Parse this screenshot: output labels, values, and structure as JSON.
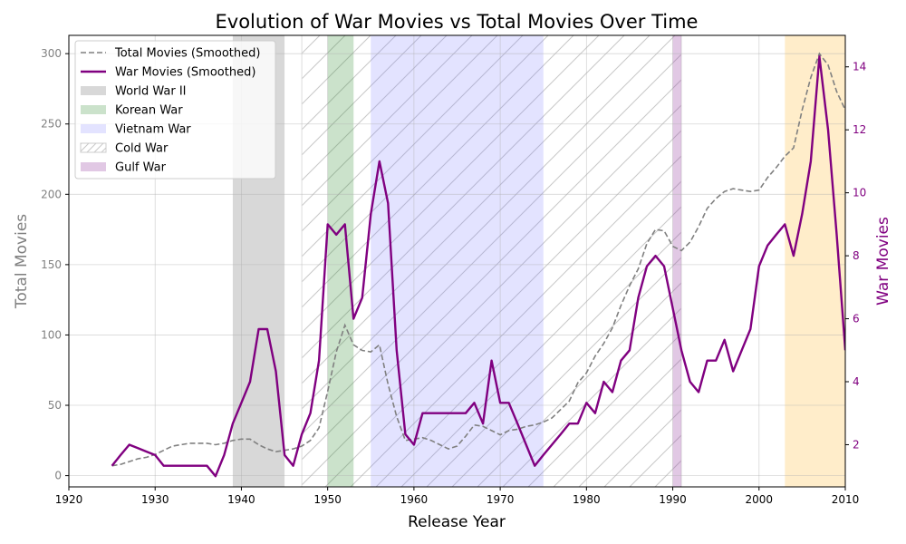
{
  "chart_data": {
    "type": "line",
    "title": "Evolution of War Movies vs Total Movies Over Time",
    "xlabel": "Release Year",
    "ylabel_left": "Total Movies",
    "ylabel_right": "War Movies",
    "xlim": [
      1920,
      2010
    ],
    "ylim_left": [
      -8,
      313
    ],
    "ylim_right": [
      0.66,
      15
    ],
    "xticks": [
      1920,
      1930,
      1940,
      1950,
      1960,
      1970,
      1980,
      1990,
      2000,
      2010
    ],
    "yticks_left": [
      0,
      50,
      100,
      150,
      200,
      250,
      300
    ],
    "yticks_right": [
      2,
      4,
      6,
      8,
      10,
      12,
      14
    ],
    "grid": true,
    "legend_position": "top-left",
    "colors": {
      "total": "#808080",
      "war": "#800080",
      "ww2": "#a9a9a9",
      "korean": "#2e8b2e",
      "vietnam": "#8080ff",
      "cold": "#c8c8c8",
      "gulf": "#9b4aa6",
      "extra": "#ffcc66"
    },
    "periods": [
      {
        "name": "World War II",
        "start": 1939,
        "end": 1945,
        "style": "ww2"
      },
      {
        "name": "Korean War",
        "start": 1950,
        "end": 1953,
        "style": "korean"
      },
      {
        "name": "Vietnam War",
        "start": 1955,
        "end": 1975,
        "style": "vietnam"
      },
      {
        "name": "Cold War",
        "start": 1947,
        "end": 1991,
        "style": "cold"
      },
      {
        "name": "Gulf War",
        "start": 1990,
        "end": 1991,
        "style": "gulf"
      },
      {
        "name": "",
        "start": 2003,
        "end": 2010,
        "style": "extra"
      }
    ],
    "series": [
      {
        "name": "Total Movies (Smoothed)",
        "axis": "left",
        "x": [
          1925,
          1926,
          1927,
          1928,
          1929,
          1930,
          1931,
          1932,
          1933,
          1934,
          1935,
          1936,
          1937,
          1938,
          1939,
          1940,
          1941,
          1942,
          1943,
          1944,
          1945,
          1946,
          1947,
          1948,
          1949,
          1950,
          1951,
          1952,
          1953,
          1954,
          1955,
          1956,
          1957,
          1958,
          1959,
          1960,
          1961,
          1962,
          1963,
          1964,
          1965,
          1966,
          1967,
          1968,
          1969,
          1970,
          1971,
          1972,
          1973,
          1974,
          1975,
          1976,
          1977,
          1978,
          1979,
          1980,
          1981,
          1982,
          1983,
          1984,
          1985,
          1986,
          1987,
          1988,
          1989,
          1990,
          1991,
          1992,
          1993,
          1994,
          1995,
          1996,
          1997,
          1998,
          1999,
          2000,
          2001,
          2002,
          2003,
          2004,
          2005,
          2006,
          2007,
          2008,
          2009,
          2010
        ],
        "values": [
          7,
          8,
          10,
          12,
          13,
          15,
          18,
          21,
          22,
          23,
          23,
          23,
          22,
          23,
          25,
          26,
          26,
          22,
          19,
          17,
          18,
          19,
          21,
          25,
          34,
          60,
          88,
          107,
          93,
          89,
          88,
          93,
          65,
          42,
          25,
          26,
          27,
          25,
          22,
          19,
          21,
          28,
          36,
          35,
          32,
          29,
          32,
          33,
          35,
          36,
          38,
          41,
          47,
          53,
          66,
          73,
          85,
          94,
          105,
          121,
          135,
          147,
          165,
          175,
          174,
          163,
          160,
          166,
          177,
          190,
          197,
          202,
          204,
          203,
          202,
          203,
          212,
          219,
          227,
          233,
          260,
          283,
          300,
          292,
          273,
          260
        ]
      },
      {
        "name": "War Movies (Smoothed)",
        "axis": "right",
        "x": [
          1925,
          1926,
          1927,
          1928,
          1929,
          1930,
          1931,
          1932,
          1933,
          1934,
          1935,
          1936,
          1937,
          1938,
          1939,
          1940,
          1941,
          1942,
          1943,
          1944,
          1945,
          1946,
          1947,
          1948,
          1949,
          1950,
          1951,
          1952,
          1953,
          1954,
          1955,
          1956,
          1957,
          1958,
          1959,
          1960,
          1961,
          1962,
          1963,
          1964,
          1965,
          1966,
          1967,
          1968,
          1969,
          1970,
          1971,
          1972,
          1973,
          1974,
          1975,
          1976,
          1977,
          1978,
          1979,
          1980,
          1981,
          1982,
          1983,
          1984,
          1985,
          1986,
          1987,
          1988,
          1989,
          1990,
          1991,
          1992,
          1993,
          1994,
          1995,
          1996,
          1997,
          1998,
          1999,
          2000,
          2001,
          2002,
          2003,
          2004,
          2005,
          2006,
          2007,
          2008,
          2009,
          2010
        ],
        "values": [
          1.33,
          1.67,
          2.0,
          1.89,
          1.78,
          1.67,
          1.33,
          1.33,
          1.33,
          1.33,
          1.33,
          1.33,
          1.0,
          1.67,
          2.67,
          3.33,
          4.0,
          5.67,
          5.67,
          4.33,
          1.67,
          1.33,
          2.33,
          3.0,
          4.67,
          9.0,
          8.67,
          9.0,
          6.0,
          6.67,
          9.33,
          11.0,
          9.67,
          5.0,
          2.33,
          2.0,
          3.0,
          3.0,
          3.0,
          3.0,
          3.0,
          3.0,
          3.33,
          2.67,
          4.67,
          3.33,
          3.33,
          2.67,
          2.0,
          1.33,
          1.67,
          2.0,
          2.33,
          2.67,
          2.67,
          3.33,
          3.0,
          4.0,
          3.67,
          4.67,
          5.0,
          6.67,
          7.67,
          8.0,
          7.67,
          6.33,
          5.0,
          4.0,
          3.67,
          4.67,
          4.67,
          5.33,
          4.33,
          5.0,
          5.67,
          7.67,
          8.33,
          8.67,
          9.0,
          8.0,
          9.33,
          11.0,
          14.33,
          12.0,
          8.67,
          5.0
        ]
      }
    ]
  }
}
